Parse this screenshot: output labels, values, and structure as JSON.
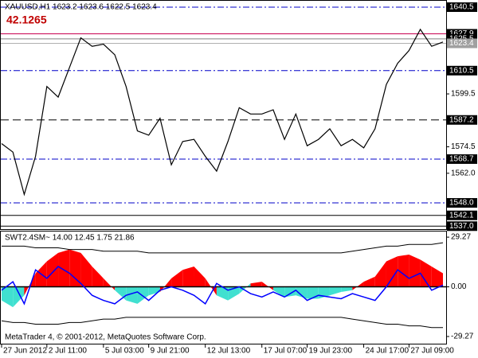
{
  "chart_data": [
    {
      "type": "line",
      "title": "XAUUSD,H1  1623.2 1623.6 1622.5 1623.4",
      "subtitle": "42.1265",
      "ylim": [
        1535.6,
        1643.5
      ],
      "yticks": [
        1599.5,
        1574.5,
        {
          "value": 1562,
          "label": "1562.0"
        }
      ],
      "levels": [
        {
          "value": 1640.5,
          "color": "#0000c8",
          "style": "dashdot",
          "box": "#000000"
        },
        {
          "value": 1627.9,
          "color": "#c80050",
          "style": "solid",
          "box": "#000000"
        },
        {
          "value": 1625.5,
          "color": "#808080",
          "style": "solid",
          "box": "#000000"
        },
        {
          "value": 1623.4,
          "color": "#b0b0b0",
          "style": "solid",
          "box": "#a0a0a0"
        },
        {
          "value": 1610.5,
          "color": "#0000c8",
          "style": "dashdot",
          "box": "#000000"
        },
        {
          "value": 1587.2,
          "color": "#000000",
          "style": "dashed",
          "box": "#000000"
        },
        {
          "value": 1568.7,
          "color": "#0000c8",
          "style": "dashdot",
          "box": "#000000"
        },
        {
          "value": {
            "value": 1548,
            "label": "1548.0"
          },
          "color": "#0000c8",
          "style": "dashdot",
          "box": "#000000"
        },
        {
          "value": 1542.1,
          "color": "#000000",
          "style": "solid",
          "box": "#000000"
        },
        {
          "value": {
            "value": 1537,
            "label": "1537.0"
          },
          "color": "#000000",
          "style": "solid",
          "box": "#000000"
        }
      ],
      "categories": [
        "27 Jun 2012",
        null,
        null,
        null,
        "2 Jul 11:00",
        null,
        null,
        null,
        null,
        "5 Jul 03:00",
        null,
        null,
        null,
        "9 Jul 21:00",
        null,
        null,
        null,
        null,
        "12 Jul 13:00",
        null,
        null,
        null,
        null,
        "17 Jul 07:00",
        null,
        null,
        null,
        "19 Jul 23:00",
        null,
        null,
        null,
        null,
        "24 Jul 17:00",
        null,
        null,
        null,
        "27 Jul 09:00",
        null,
        null,
        null
      ],
      "series": [
        {
          "color": "#000000",
          "values": [
            1576,
            1572,
            1552,
            1570,
            1603,
            1598,
            1612,
            1626,
            1622,
            1623,
            1618,
            1603,
            1582,
            1580,
            1588,
            1566,
            1577,
            1578,
            1570,
            1563,
            1577,
            1593,
            1590,
            1590,
            1592,
            1578,
            1590,
            1575,
            1578,
            1583,
            1575,
            1578,
            1574,
            1583,
            1604,
            1614,
            1620,
            1630,
            1622,
            1624
          ]
        }
      ]
    },
    {
      "type": "oscillator",
      "title": "SWT2.4SM~ 14.00 12.45 1.75 21.86",
      "annotation": "MetaTrader 4, © 2001-2012, MetaQuotes Software Corp.",
      "ylim": [
        -33.5,
        32.6
      ],
      "yticks": [
        29.27,
        {
          "value": 0,
          "label": "0.00"
        },
        -29.27
      ],
      "fill": {
        "pos_color": "#ff0000",
        "neg_color": "#40e0d0",
        "values": [
          -8,
          -12,
          -5,
          8,
          15,
          20,
          22,
          20,
          12,
          5,
          -2,
          -8,
          -10,
          -5,
          -3,
          5,
          10,
          12,
          5,
          -5,
          -8,
          -4,
          2,
          3,
          -2,
          -6,
          -5,
          -7,
          -7,
          -5,
          -3,
          -2,
          3,
          6,
          15,
          18,
          19,
          16,
          12,
          8
        ]
      },
      "series": [
        {
          "color": "#0000ff",
          "values": [
            -2,
            3,
            -10,
            10,
            5,
            12,
            8,
            2,
            -5,
            -8,
            -10,
            -5,
            -3,
            -8,
            -2,
            0,
            -2,
            -5,
            -10,
            2,
            -2,
            0,
            -4,
            -6,
            -3,
            -6,
            -2,
            -8,
            -5,
            -6,
            -7,
            -4,
            -6,
            -8,
            0,
            10,
            5,
            8,
            -2,
            1
          ]
        },
        {
          "color": "#000000",
          "values": [
            24,
            24,
            24,
            23,
            23,
            23,
            22,
            22,
            22,
            21,
            21,
            21,
            21,
            20,
            20,
            20,
            20,
            20,
            20,
            20,
            20,
            20,
            20,
            20,
            20,
            20,
            20,
            20,
            20,
            20,
            20,
            21,
            22,
            23,
            24,
            24,
            25,
            25,
            25,
            26
          ]
        },
        {
          "color": "#000000",
          "values": [
            -20,
            -21,
            -21,
            -22,
            -22,
            -22,
            -21,
            -21,
            -20,
            -19,
            -19,
            -18,
            -18,
            -18,
            -18,
            -18,
            -18,
            -18,
            -18,
            -18,
            -18,
            -18,
            -18,
            -18,
            -18,
            -18,
            -18,
            -18,
            -18,
            -18,
            -18,
            -19,
            -20,
            -21,
            -22,
            -22,
            -23,
            -23,
            -24,
            -24
          ]
        }
      ]
    }
  ]
}
